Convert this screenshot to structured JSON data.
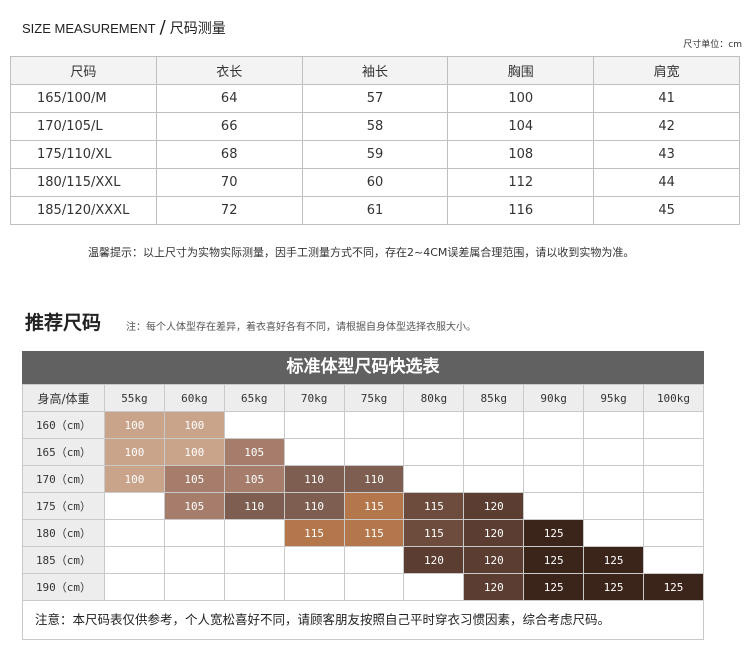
{
  "header": {
    "en": "SIZE MEASUREMENT",
    "sep": "/",
    "cn": "尺码测量",
    "unit": "尺寸单位：cm"
  },
  "size_table": {
    "columns": [
      "尺码",
      "衣长",
      "袖长",
      "胸围",
      "肩宽"
    ],
    "rows": [
      [
        "165/100/M",
        "64",
        "57",
        "100",
        "41"
      ],
      [
        "170/105/L",
        "66",
        "58",
        "104",
        "42"
      ],
      [
        "175/110/XL",
        "68",
        "59",
        "108",
        "43"
      ],
      [
        "180/115/XXL",
        "70",
        "60",
        "112",
        "44"
      ],
      [
        "185/120/XXXL",
        "72",
        "61",
        "116",
        "45"
      ]
    ]
  },
  "tip": "温馨提示：以上尺寸为实物实际测量，因手工测量方式不同，存在2~4CM误差属合理范围，请以收到实物为准。",
  "recommend": {
    "title": "推荐尺码",
    "note": "注：每个人体型存在差异，着衣喜好各有不同，请根据自身体型选择衣服大小。"
  },
  "quick_chart": {
    "title": "标准体型尺码快选表",
    "corner": "身高/体重",
    "weights": [
      "55kg",
      "60kg",
      "65kg",
      "70kg",
      "75kg",
      "80kg",
      "85kg",
      "90kg",
      "95kg",
      "100kg"
    ],
    "heights": [
      "160（cm）",
      "165（cm）",
      "170（cm）",
      "175（cm）",
      "180（cm）",
      "185（cm）",
      "190（cm）"
    ],
    "cells": [
      [
        "100",
        "100",
        "",
        "",
        "",
        "",
        "",
        "",
        "",
        ""
      ],
      [
        "100",
        "100",
        "105",
        "",
        "",
        "",
        "",
        "",
        "",
        ""
      ],
      [
        "100",
        "105",
        "105",
        "110",
        "110",
        "",
        "",
        "",
        "",
        ""
      ],
      [
        "",
        "105",
        "110",
        "110",
        "115",
        "115",
        "120",
        "",
        "",
        ""
      ],
      [
        "",
        "",
        "",
        "115",
        "115",
        "115",
        "120",
        "125",
        "",
        ""
      ],
      [
        "",
        "",
        "",
        "",
        "",
        "120",
        "120",
        "125",
        "125",
        ""
      ],
      [
        "",
        "",
        "",
        "",
        "",
        "",
        "120",
        "125",
        "125",
        "125"
      ]
    ],
    "colors": {
      "100": "#c9a48b",
      "105": "#a57d6a",
      "110": "#7e5e50",
      "115a": "#b4774c",
      "115b": "#6e4c3d",
      "120": "#5b3e31",
      "125": "#3b2419"
    },
    "footnote": "注意：本尺码表仅供参考，个人宽松喜好不同，请顾客朋友按照自己平时穿衣习惯因素，综合考虑尺码。"
  }
}
